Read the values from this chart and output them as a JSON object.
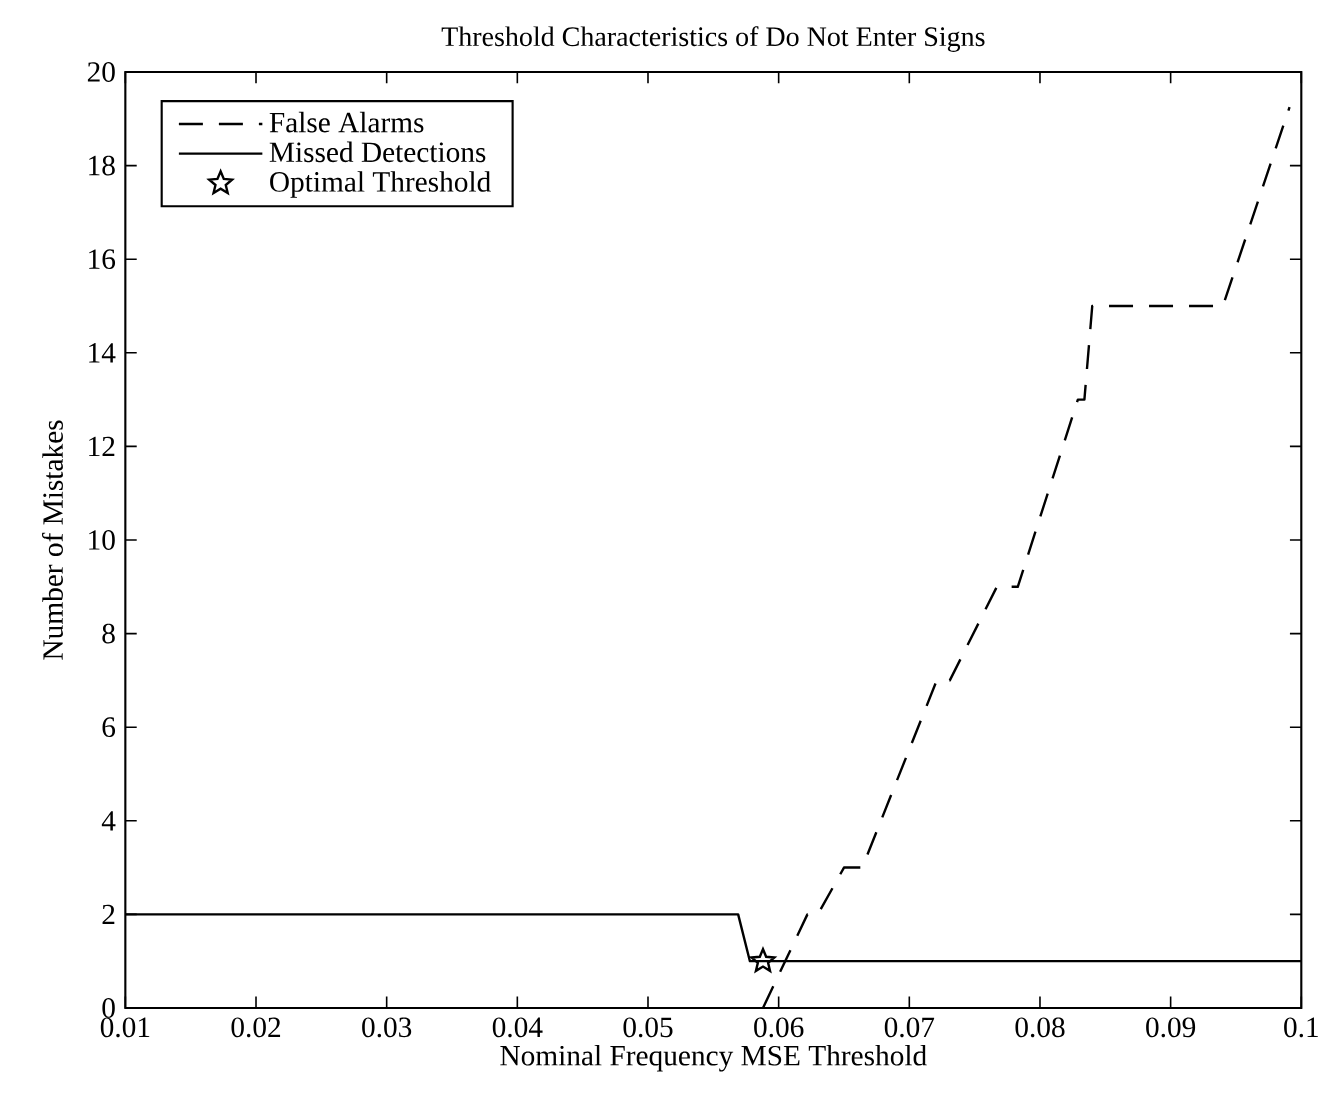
{
  "chart_data": {
    "type": "line",
    "title": "Threshold Characteristics of Do Not Enter Signs",
    "xlabel": "Nominal Frequency MSE Threshold",
    "ylabel": "Number of Mistakes",
    "xlim": [
      0.01,
      0.1
    ],
    "ylim": [
      0,
      20
    ],
    "xticks": [
      0.01,
      0.02,
      0.03,
      0.04,
      0.05,
      0.06,
      0.07,
      0.08,
      0.09,
      0.1
    ],
    "yticks": [
      0,
      2,
      4,
      6,
      8,
      10,
      12,
      14,
      16,
      18,
      20
    ],
    "legend": "top left",
    "grid": false,
    "series": [
      {
        "name": "False Alarms",
        "color": "#000000",
        "line_style": "dashed",
        "marker": "none",
        "x": [
          0.0588,
          0.0622,
          0.063,
          0.065,
          0.0664,
          0.0721,
          0.0731,
          0.0767,
          0.0783,
          0.0829,
          0.0834,
          0.084,
          0.094,
          0.0991
        ],
        "values": [
          0,
          2,
          2,
          3,
          3,
          7,
          7,
          9,
          9,
          13,
          13,
          15,
          15,
          19.25
        ]
      },
      {
        "name": "Missed Detections",
        "color": "#000000",
        "line_style": "solid",
        "marker": "none",
        "x": [
          0.01,
          0.0569,
          0.0578,
          0.1
        ],
        "values": [
          2,
          2,
          1,
          1
        ]
      },
      {
        "name": "Optimal Threshold",
        "type": "scatter",
        "color": "#000000",
        "marker": "star",
        "x": [
          0.0588
        ],
        "values": [
          1
        ]
      }
    ]
  }
}
